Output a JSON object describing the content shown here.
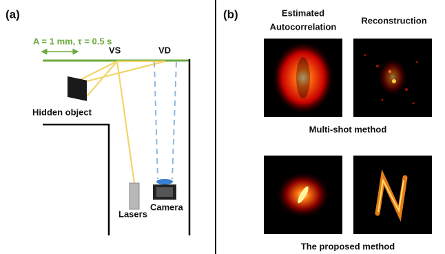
{
  "panel_a": {
    "label": "(a)",
    "parameters": "A = 1 mm, τ = 0.5 s",
    "vs_label": "VS",
    "vd_label": "VD",
    "hidden_object_label": "Hidden object",
    "laser_label": "Lasers",
    "camera_label": "Camera"
  },
  "panel_b": {
    "label": "(b)",
    "autocorrelation_header": [
      "Estimated",
      "Autocorrelation"
    ],
    "reconstruction_header": "Reconstruction",
    "rows": [
      {
        "caption": "Multi-shot method"
      },
      {
        "caption": "The proposed method"
      }
    ]
  }
}
